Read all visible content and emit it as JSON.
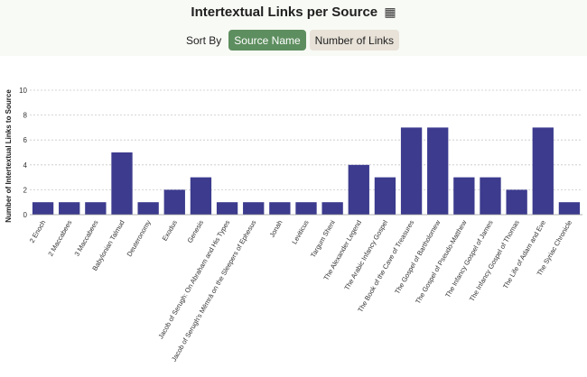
{
  "header": {
    "title": "Intertextual Links per Source",
    "title_icon": "▦",
    "sort_label": "Sort By",
    "buttons": [
      "Source Name",
      "Number of Links"
    ],
    "active_button": "Source Name"
  },
  "colors": {
    "bar": "#3c3b8e",
    "active_button": "#5d8e5f",
    "inactive_button": "#e8e2d8"
  },
  "chart_data": {
    "type": "bar",
    "ylabel": "Number of Intertextual Links to Source",
    "xlabel": "",
    "ylim": [
      0,
      10
    ],
    "yticks": [
      0,
      2,
      4,
      6,
      8,
      10
    ],
    "grid": true,
    "categories": [
      "2 Enoch",
      "2 Maccabees",
      "3 Maccabees",
      "Babylonian Talmud",
      "Deuteronomy",
      "Exodus",
      "Genesis",
      "Jacob of Serugh: On Abraham and His Types",
      "Jacob of Serugh's Mēmrā on the Sleepers of Ephesus",
      "Jonah",
      "Leviticus",
      "Targum Sheni",
      "The Alexander Legend",
      "The Arabic Infancy Gospel",
      "The Book of the Cave of Treasures",
      "The Gospel of Bartholomew",
      "The Gospel of Pseudo-Matthew",
      "The Infancy Gospel of James",
      "The Infancy Gospel of Thomas",
      "The Life of Adam and Eve",
      "The Syriac Chronicle"
    ],
    "values": [
      1,
      1,
      1,
      5,
      1,
      2,
      3,
      1,
      1,
      1,
      1,
      1,
      4,
      3,
      7,
      7,
      3,
      3,
      2,
      7,
      1
    ]
  }
}
